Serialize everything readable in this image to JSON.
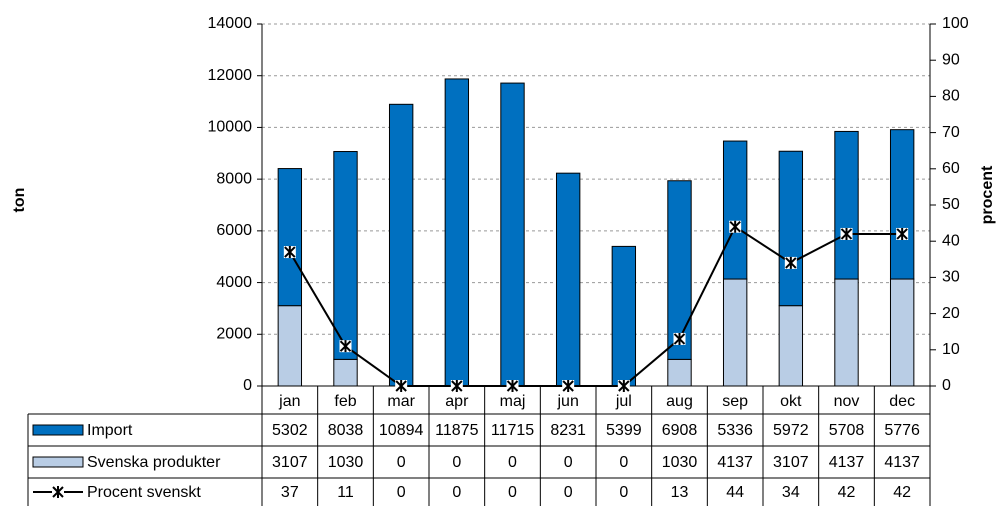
{
  "chart_data": {
    "type": "bar",
    "stacked": true,
    "categories": [
      "jan",
      "feb",
      "mar",
      "apr",
      "maj",
      "jun",
      "jul",
      "aug",
      "sep",
      "okt",
      "nov",
      "dec"
    ],
    "series": [
      {
        "name": "Import",
        "color": "#0070c0",
        "values": [
          5302,
          8038,
          10894,
          11875,
          11715,
          8231,
          5399,
          6908,
          5336,
          5972,
          5708,
          5776
        ]
      },
      {
        "name": "Svenska produkter",
        "color": "#b9cde5",
        "values": [
          3107,
          1030,
          0,
          0,
          0,
          0,
          0,
          1030,
          4137,
          3107,
          4137,
          4137
        ]
      },
      {
        "name": "Procent svenskt",
        "type": "line",
        "axis": "y2",
        "color": "#000000",
        "values": [
          37,
          11,
          0,
          0,
          0,
          0,
          0,
          13,
          44,
          34,
          42,
          42
        ]
      }
    ],
    "ylabel": "ton",
    "y2label": "procent",
    "ylim": [
      0,
      14000
    ],
    "yticks": [
      0,
      2000,
      4000,
      6000,
      8000,
      10000,
      12000,
      14000
    ],
    "y2lim": [
      0,
      100
    ],
    "y2ticks": [
      0,
      10,
      20,
      30,
      40,
      50,
      60,
      70,
      80,
      90,
      100
    ],
    "grid": true,
    "data_table": true
  }
}
